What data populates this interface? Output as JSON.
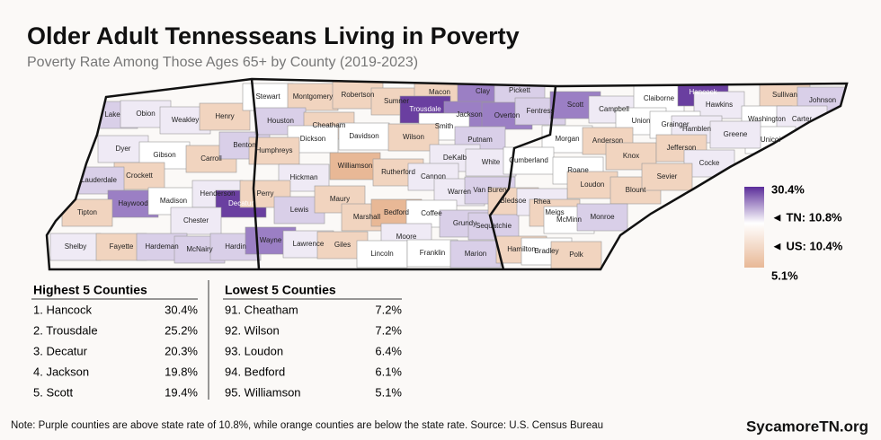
{
  "header": {
    "title": "Older Adult Tennesseans Living in Poverty",
    "subtitle": "Poverty Rate Among Those Ages 65+ by County (2019-2023)"
  },
  "map": {
    "counties": [
      {
        "name": "Lake",
        "color": "#d9cfe8"
      },
      {
        "name": "Obion",
        "color": "#efeaf5"
      },
      {
        "name": "Weakley",
        "color": "#efeaf5"
      },
      {
        "name": "Henry",
        "color": "#f1d4bf"
      },
      {
        "name": "Dyer",
        "color": "#efeaf5"
      },
      {
        "name": "Gibson",
        "color": "#ffffff"
      },
      {
        "name": "Carroll",
        "color": "#f1d4bf"
      },
      {
        "name": "Benton",
        "color": "#d9cfe8"
      },
      {
        "name": "Crockett",
        "color": "#f1d4bf"
      },
      {
        "name": "Lauderdale",
        "color": "#d9cfe8"
      },
      {
        "name": "Haywood",
        "color": "#9b7fc4"
      },
      {
        "name": "Madison",
        "color": "#ffffff"
      },
      {
        "name": "Henderson",
        "color": "#efeaf5"
      },
      {
        "name": "Decatur",
        "color": "#6a3fa0"
      },
      {
        "name": "Chester",
        "color": "#efeaf5"
      },
      {
        "name": "Tipton",
        "color": "#f1d4bf"
      },
      {
        "name": "Shelby",
        "color": "#efeaf5"
      },
      {
        "name": "Fayette",
        "color": "#f1d4bf"
      },
      {
        "name": "Hardeman",
        "color": "#d9cfe8"
      },
      {
        "name": "McNairy",
        "color": "#d9cfe8"
      },
      {
        "name": "Hardin",
        "color": "#d9cfe8"
      },
      {
        "name": "Stewart",
        "color": "#ffffff"
      },
      {
        "name": "Montgomery",
        "color": "#f1d4bf"
      },
      {
        "name": "Robertson",
        "color": "#f1d4bf"
      },
      {
        "name": "Sumner",
        "color": "#f1d4bf"
      },
      {
        "name": "Macon",
        "color": "#f1d4bf"
      },
      {
        "name": "Trousdale",
        "color": "#6a3fa0"
      },
      {
        "name": "Clay",
        "color": "#9b7fc4"
      },
      {
        "name": "Pickett",
        "color": "#d9cfe8"
      },
      {
        "name": "Jackson",
        "color": "#9b7fc4"
      },
      {
        "name": "Overton",
        "color": "#9b7fc4"
      },
      {
        "name": "Fentress",
        "color": "#d9cfe8"
      },
      {
        "name": "Houston",
        "color": "#d9cfe8"
      },
      {
        "name": "Cheatham",
        "color": "#f1d4bf"
      },
      {
        "name": "Dickson",
        "color": "#ffffff"
      },
      {
        "name": "Davidson",
        "color": "#ffffff"
      },
      {
        "name": "Smith",
        "color": "#ffffff"
      },
      {
        "name": "Wilson",
        "color": "#f1d4bf"
      },
      {
        "name": "Putnam",
        "color": "#d9cfe8"
      },
      {
        "name": "Humphreys",
        "color": "#f1d4bf"
      },
      {
        "name": "Hickman",
        "color": "#efeaf5"
      },
      {
        "name": "Williamson",
        "color": "#e8b896"
      },
      {
        "name": "Rutherford",
        "color": "#f1d4bf"
      },
      {
        "name": "DeKalb",
        "color": "#efeaf5"
      },
      {
        "name": "White",
        "color": "#efeaf5"
      },
      {
        "name": "Cannon",
        "color": "#efeaf5"
      },
      {
        "name": "Warren",
        "color": "#efeaf5"
      },
      {
        "name": "Van Buren",
        "color": "#d9cfe8"
      },
      {
        "name": "Perry",
        "color": "#f1d4bf"
      },
      {
        "name": "Lewis",
        "color": "#d9cfe8"
      },
      {
        "name": "Maury",
        "color": "#f1d4bf"
      },
      {
        "name": "Marshall",
        "color": "#f1d4bf"
      },
      {
        "name": "Bedford",
        "color": "#e8b896"
      },
      {
        "name": "Coffee",
        "color": "#ffffff"
      },
      {
        "name": "Grundy",
        "color": "#d9cfe8"
      },
      {
        "name": "Sequatchie",
        "color": "#d9cfe8"
      },
      {
        "name": "Wayne",
        "color": "#9b7fc4"
      },
      {
        "name": "Lawrence",
        "color": "#efeaf5"
      },
      {
        "name": "Giles",
        "color": "#f1d4bf"
      },
      {
        "name": "Moore",
        "color": "#efeaf5"
      },
      {
        "name": "Lincoln",
        "color": "#ffffff"
      },
      {
        "name": "Franklin",
        "color": "#ffffff"
      },
      {
        "name": "Marion",
        "color": "#d9cfe8"
      },
      {
        "name": "Scott",
        "color": "#9b7fc4"
      },
      {
        "name": "Campbell",
        "color": "#efeaf5"
      },
      {
        "name": "Claiborne",
        "color": "#ffffff"
      },
      {
        "name": "Hancock",
        "color": "#6a3fa0"
      },
      {
        "name": "Sullivan",
        "color": "#f1d4bf"
      },
      {
        "name": "Hawkins",
        "color": "#efeaf5"
      },
      {
        "name": "Johnson",
        "color": "#d9cfe8"
      },
      {
        "name": "Union",
        "color": "#ffffff"
      },
      {
        "name": "Grainger",
        "color": "#ffffff"
      },
      {
        "name": "Hamblen",
        "color": "#efeaf5"
      },
      {
        "name": "Washington",
        "color": "#ffffff"
      },
      {
        "name": "Carter",
        "color": "#efeaf5"
      },
      {
        "name": "Unicoi",
        "color": "#ffffff"
      },
      {
        "name": "Greene",
        "color": "#efeaf5"
      },
      {
        "name": "Morgan",
        "color": "#ffffff"
      },
      {
        "name": "Anderson",
        "color": "#f1d4bf"
      },
      {
        "name": "Cumberland",
        "color": "#ffffff"
      },
      {
        "name": "Knox",
        "color": "#f1d4bf"
      },
      {
        "name": "Jefferson",
        "color": "#f1d4bf"
      },
      {
        "name": "Cocke",
        "color": "#efeaf5"
      },
      {
        "name": "Roane",
        "color": "#ffffff"
      },
      {
        "name": "Loudon",
        "color": "#f1d4bf"
      },
      {
        "name": "Blount",
        "color": "#f1d4bf"
      },
      {
        "name": "Sevier",
        "color": "#f1d4bf"
      },
      {
        "name": "Bledsoe",
        "color": "#f1d4bf"
      },
      {
        "name": "Rhea",
        "color": "#efeaf5"
      },
      {
        "name": "Meigs",
        "color": "#f1d4bf"
      },
      {
        "name": "McMinn",
        "color": "#ffffff"
      },
      {
        "name": "Monroe",
        "color": "#d9cfe8"
      },
      {
        "name": "Hamilton",
        "color": "#f1d4bf"
      },
      {
        "name": "Bradley",
        "color": "#ffffff"
      },
      {
        "name": "Polk",
        "color": "#f1d4bf"
      }
    ]
  },
  "legend": {
    "max": "30.4%",
    "tn": "◄ TN: 10.8%",
    "us": "◄ US: 10.4%",
    "min": "5.1%",
    "colors": [
      "#5b2d9a",
      "#ffffff",
      "#e8b896"
    ]
  },
  "tables": {
    "highest": {
      "title": "Highest 5 Counties",
      "rows": [
        [
          "1. Hancock",
          "30.4%"
        ],
        [
          "2. Trousdale",
          "25.2%"
        ],
        [
          "3. Decatur",
          "20.3%"
        ],
        [
          "4. Jackson",
          "19.8%"
        ],
        [
          "5. Scott",
          "19.4%"
        ]
      ]
    },
    "lowest": {
      "title": "Lowest 5 Counties",
      "rows": [
        [
          "91. Cheatham",
          "7.2%"
        ],
        [
          "92. Wilson",
          "7.2%"
        ],
        [
          "93. Loudon",
          "6.4%"
        ],
        [
          "94. Bedford",
          "6.1%"
        ],
        [
          "95. Williamson",
          "5.1%"
        ]
      ]
    }
  },
  "footer": {
    "note": "Note: Purple counties are above state rate of 10.8%, while orange counties are below the state rate. Source: U.S. Census Bureau",
    "brand": "SycamoreTN.org"
  }
}
